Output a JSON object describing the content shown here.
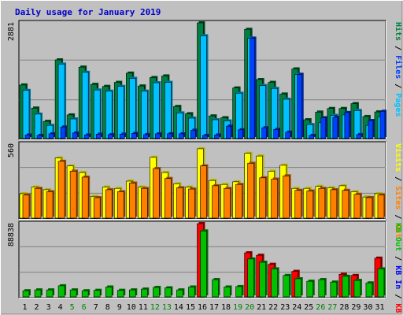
{
  "chart_data": {
    "type": "bar",
    "title": "Daily usage for January 2019",
    "x": [
      "1",
      "2",
      "3",
      "4",
      "5",
      "6",
      "7",
      "8",
      "9",
      "10",
      "11",
      "12",
      "13",
      "14",
      "15",
      "16",
      "17",
      "18",
      "19",
      "20",
      "21",
      "22",
      "23",
      "24",
      "25",
      "26",
      "27",
      "28",
      "29",
      "30",
      "31"
    ],
    "weekend_days": [
      "5",
      "6",
      "12",
      "13",
      "19",
      "20",
      "26",
      "27"
    ],
    "colors": {
      "hits": "#008040",
      "files": "#00c0ff",
      "pages": "#0040ff",
      "visits": "#ffff00",
      "sites": "#ff8000",
      "kb_f": "#ff0000",
      "kb_in": "#0000ff",
      "kb_out": "#00c000",
      "weekday_label": "#000000",
      "weekend_label": "#008000",
      "background": "#c0c0c0",
      "border": "#ffffff",
      "title": "#0000cc"
    },
    "panels": [
      {
        "name": "hits-files-pages",
        "axis_max_label": "2881",
        "ylim": [
          0,
          2881
        ],
        "legend": [
          "Pages",
          "Files",
          "Hits"
        ],
        "series": [
          {
            "name": "Hits",
            "values": [
              1335,
              760,
              430,
              1960,
              590,
              1780,
              1350,
              1300,
              1400,
              1630,
              1310,
              1520,
              1560,
              800,
              620,
              2881,
              565,
              520,
              1260,
              2720,
              1470,
              1400,
              1110,
              1735,
              470,
              660,
              750,
              750,
              870,
              550,
              665
            ]
          },
          {
            "name": "Files",
            "values": [
              1200,
              610,
              330,
              1855,
              490,
              1650,
              1210,
              1180,
              1300,
              1500,
              1180,
              1390,
              1400,
              640,
              510,
              2560,
              470,
              440,
              1130,
              2500,
              1320,
              1250,
              980,
              1600,
              350,
              400,
              580,
              590,
              700,
              330,
              540
            ]
          },
          {
            "name": "Pages",
            "values": [
              90,
              80,
              120,
              290,
              140,
              90,
              110,
              100,
              110,
              130,
              100,
              120,
              120,
              120,
              210,
              80,
              90,
              310,
              220,
              2500,
              270,
              230,
              160,
              1600,
              80,
              520,
              530,
              650,
              100,
              450,
              680
            ]
          }
        ]
      },
      {
        "name": "visits-sites",
        "axis_max_label": "560",
        "ylim": [
          0,
          560
        ],
        "legend": [
          "Visits",
          "Sites",
          "Out"
        ],
        "series": [
          {
            "name": "Visits",
            "values": [
              185,
              235,
              215,
              455,
              395,
              345,
              165,
              235,
              225,
              280,
              235,
              460,
              345,
              260,
              235,
              525,
              285,
              255,
              275,
              490,
              470,
              355,
              400,
              225,
              225,
              240,
              230,
              245,
              200,
              160,
              185
            ]
          },
          {
            "name": "Sites",
            "values": [
              175,
              225,
              200,
              430,
              355,
              310,
              155,
              215,
              200,
              265,
              225,
              375,
              300,
              230,
              220,
              395,
              245,
              225,
              255,
              415,
              305,
              295,
              320,
              210,
              205,
              225,
              215,
              210,
              180,
              155,
              175
            ]
          }
        ]
      },
      {
        "name": "kbytes",
        "axis_max_label": "88838",
        "ylim": [
          0,
          88838
        ],
        "legend": [
          "KB F",
          "KB In",
          "KB Out"
        ],
        "series": [
          {
            "name": "KB F",
            "values": [
              0,
              0,
              0,
              0,
              0,
              0,
              0,
              0,
              0,
              0,
              0,
              0,
              0,
              0,
              0,
              88838,
              0,
              0,
              0,
              53500,
              50500,
              39500,
              0,
              31000,
              0,
              0,
              0,
              27500,
              26000,
              0,
              47000
            ]
          },
          {
            "name": "KB In",
            "values": [
              0,
              0,
              0,
              0,
              0,
              0,
              0,
              0,
              0,
              0,
              0,
              0,
              0,
              0,
              0,
              0,
              0,
              0,
              0,
              0,
              0,
              0,
              0,
              0,
              0,
              0,
              0,
              0,
              0,
              0,
              0
            ]
          },
          {
            "name": "KB Out",
            "values": [
              7500,
              8500,
              8500,
              13500,
              8500,
              7500,
              8000,
              12000,
              8000,
              8500,
              9500,
              11500,
              11000,
              8500,
              12000,
              80000,
              21000,
              12000,
              12500,
              46000,
              42000,
              34000,
              26000,
              22000,
              19000,
              21000,
              18000,
              25000,
              20000,
              17000,
              34000
            ]
          }
        ]
      }
    ]
  }
}
